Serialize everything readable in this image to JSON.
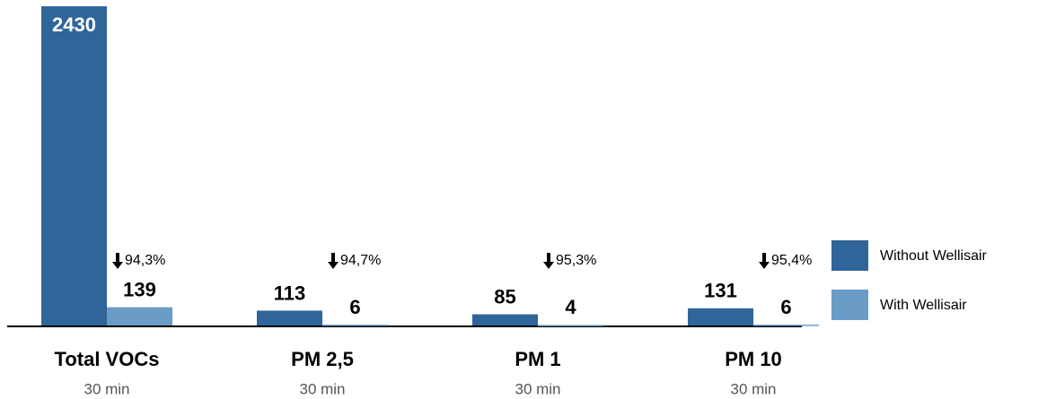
{
  "chart_data": {
    "type": "bar",
    "categories": [
      "Total VOCs",
      "PM 2,5",
      "PM 1",
      "PM 10"
    ],
    "sublabels": [
      "30 min",
      "30 min",
      "30 min",
      "30 min"
    ],
    "series": [
      {
        "name": "Without Wellisair",
        "color": "#30659a",
        "values": [
          2430,
          113,
          85,
          131
        ]
      },
      {
        "name": "With Wellisair",
        "color": "#6b9bc7",
        "values": [
          139,
          6,
          4,
          6
        ]
      }
    ],
    "annotations": [
      "94,3%",
      "94,7%",
      "95,3%",
      "95,4%"
    ],
    "ylim": [
      0,
      2430
    ],
    "legend": "right"
  }
}
